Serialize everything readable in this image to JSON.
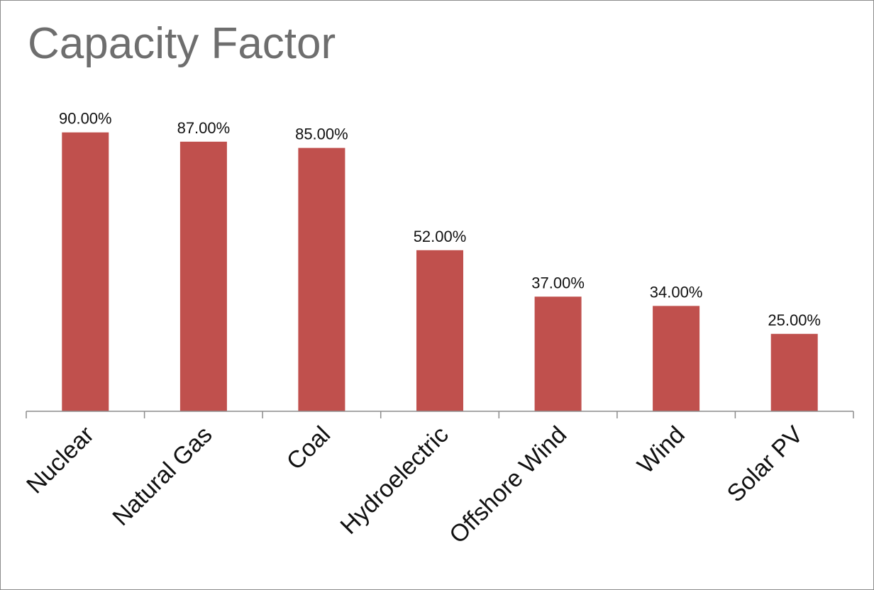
{
  "chart_data": {
    "type": "bar",
    "title": "Capacity Factor",
    "categories": [
      "Nuclear",
      "Natural Gas",
      "Coal",
      "Hydroelectric",
      "Offshore Wind",
      "Wind",
      "Solar PV"
    ],
    "values": [
      90.0,
      87.0,
      85.0,
      52.0,
      37.0,
      34.0,
      25.0
    ],
    "data_labels": [
      "90.00%",
      "87.00%",
      "85.00%",
      "52.00%",
      "37.00%",
      "34.00%",
      "25.00%"
    ],
    "ylim": [
      0,
      100
    ],
    "xlabel": "",
    "ylabel": "",
    "grid": false,
    "legend": "none",
    "bar_color": "#c0504d"
  }
}
